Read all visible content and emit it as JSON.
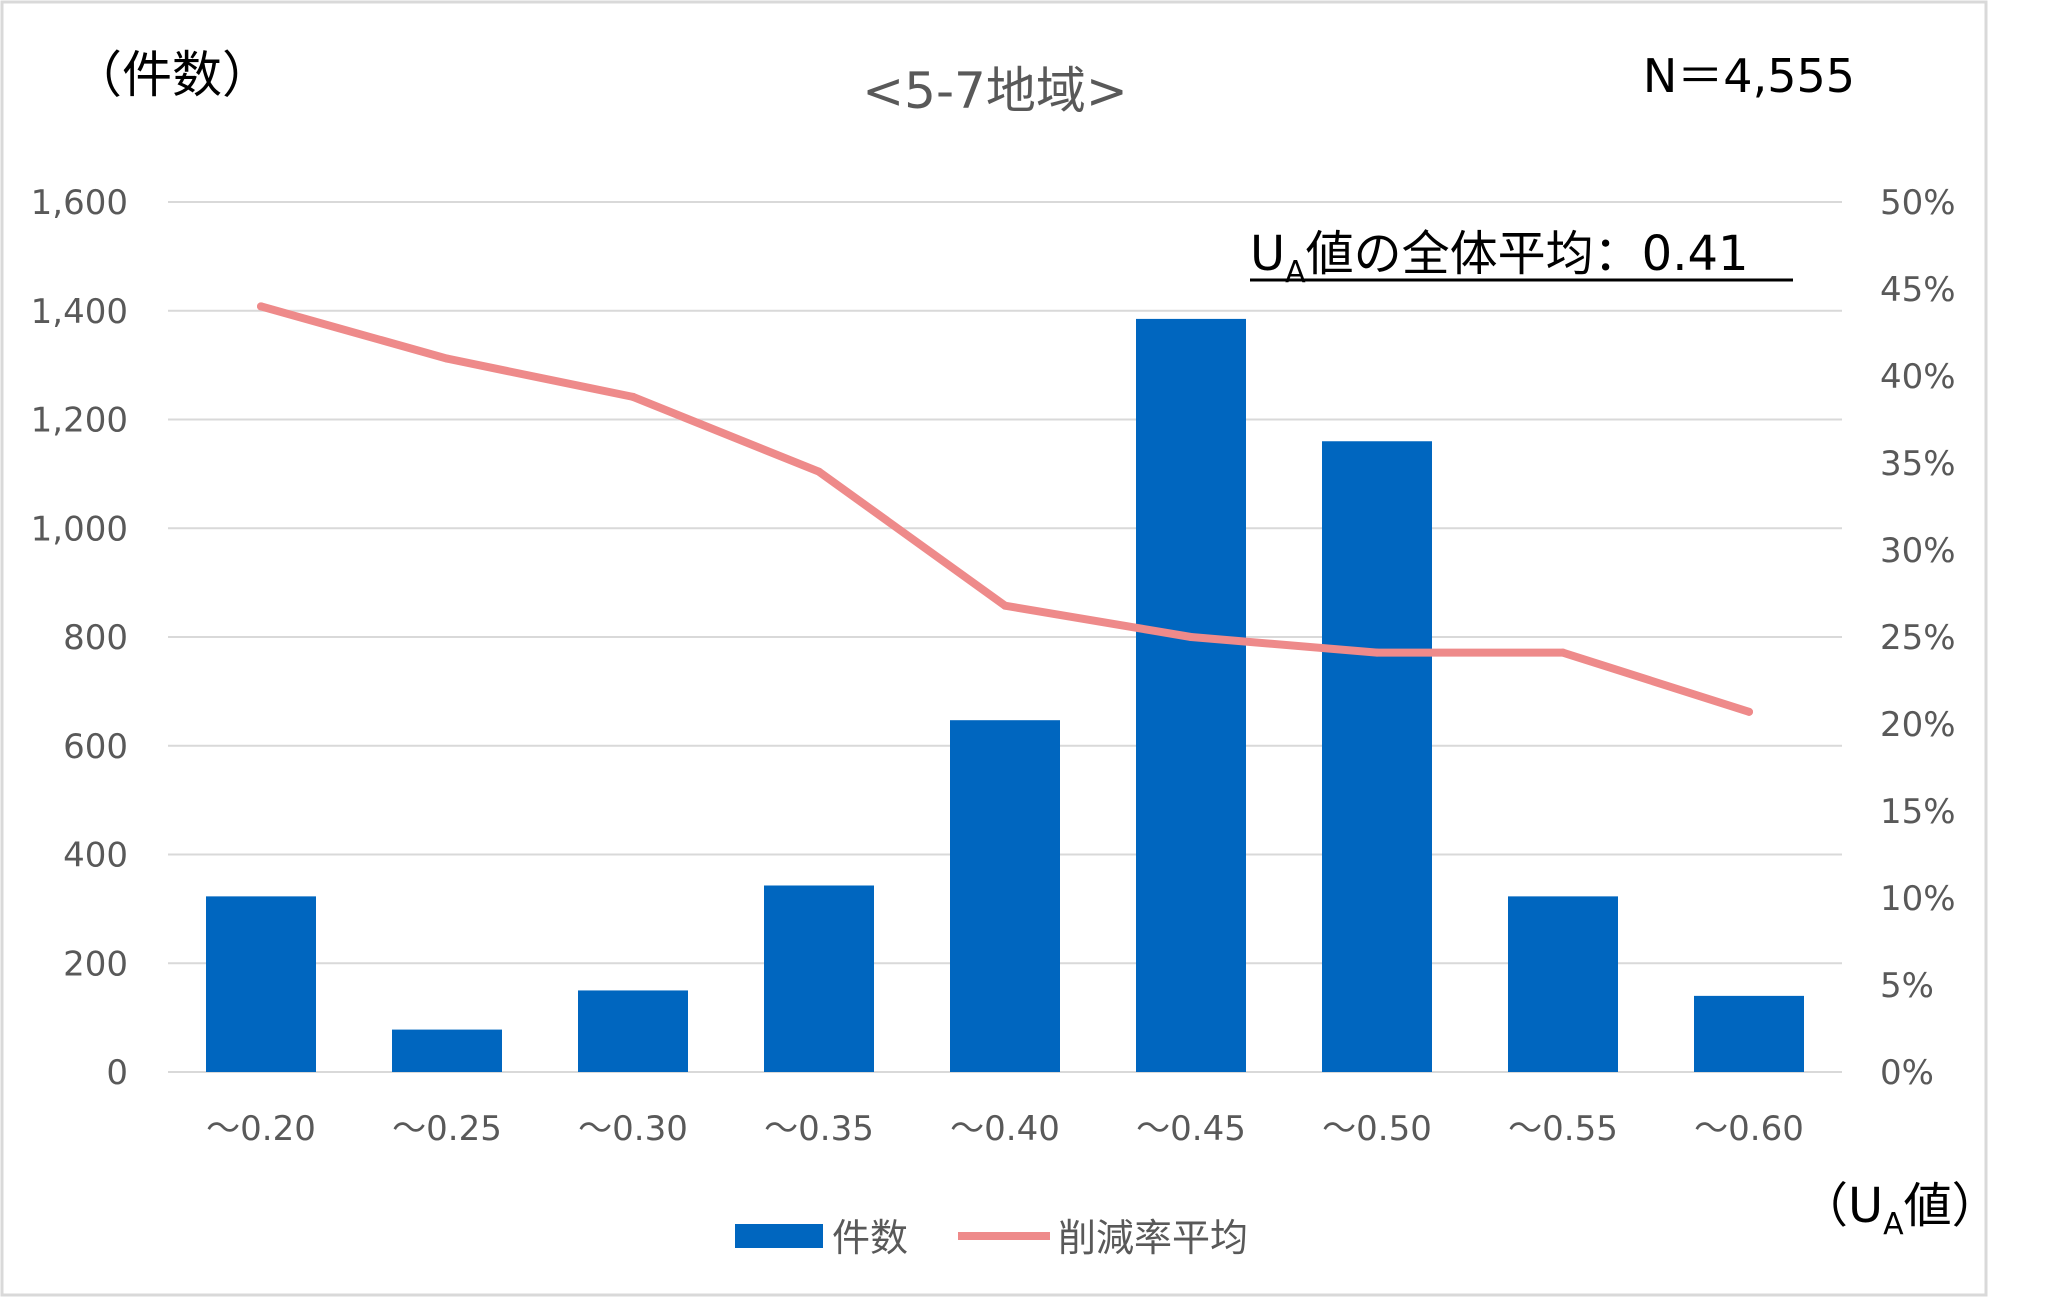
{
  "colors": {
    "bar": "#0066BF",
    "line": "#EE8A8A",
    "grid": "#D9D9D9",
    "text": "#595959"
  },
  "header": {
    "y_unit_label": "（件数）",
    "title": "<5-7地域>",
    "n_label": "N＝4,555"
  },
  "annotation": {
    "u": "U",
    "sub": "A",
    "rest": "値の全体平均：0.41"
  },
  "x_unit": {
    "open": "（U",
    "sub": "A",
    "close": "値）"
  },
  "legend": {
    "bar_label": "件数",
    "line_label": "削減率平均"
  },
  "chart_data": {
    "type": "bar",
    "categories": [
      "～0.20",
      "～0.25",
      "～0.30",
      "～0.35",
      "～0.40",
      "～0.45",
      "～0.50",
      "～0.55",
      "～0.60"
    ],
    "series": [
      {
        "name": "件数",
        "type": "bar",
        "axis": "left",
        "values": [
          323,
          78,
          150,
          343,
          647,
          1385,
          1160,
          323,
          140
        ]
      },
      {
        "name": "削減率平均",
        "type": "line",
        "axis": "right",
        "values": [
          44.0,
          41.0,
          38.8,
          34.5,
          26.8,
          25.0,
          24.1,
          24.1,
          20.7
        ]
      }
    ],
    "y_left": {
      "min": 0,
      "max": 1600,
      "step": 200,
      "tick_labels": [
        "0",
        "200",
        "400",
        "600",
        "800",
        "1,000",
        "1,200",
        "1,400",
        "1,600"
      ]
    },
    "y_right": {
      "min": 0,
      "max": 50,
      "step": 5,
      "tick_labels": [
        "0%",
        "5%",
        "10%",
        "15%",
        "20%",
        "25%",
        "30%",
        "35%",
        "40%",
        "45%",
        "50%"
      ]
    },
    "grid": true,
    "legend_position": "bottom"
  }
}
